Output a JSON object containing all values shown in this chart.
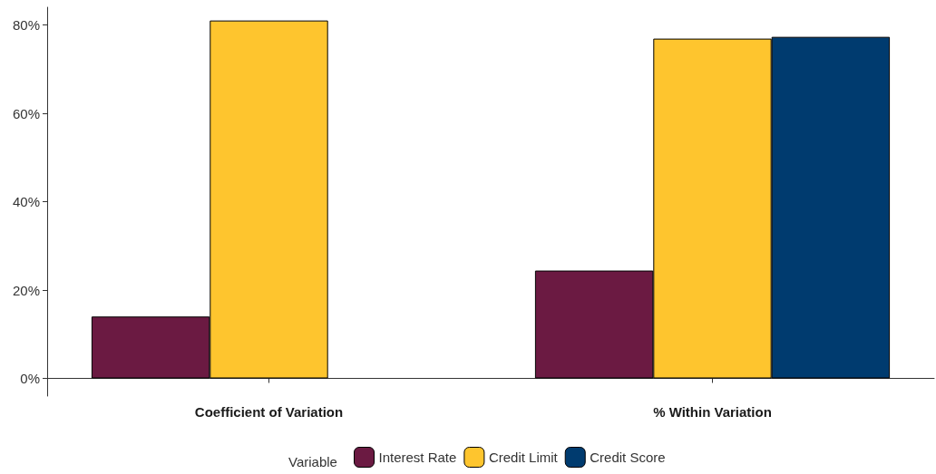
{
  "chart_data": {
    "type": "bar",
    "categories": [
      "Coefficient of Variation",
      "% Within Variation"
    ],
    "series": [
      {
        "name": "Interest Rate",
        "color": "#6b1a42",
        "values": [
          14.0,
          24.4
        ]
      },
      {
        "name": "Credit Limit",
        "color": "#fec52e",
        "values": [
          81.0,
          76.9
        ]
      },
      {
        "name": "Credit Score",
        "color": "#003b6f",
        "values": [
          null,
          77.3
        ]
      }
    ],
    "legend_title": "Variable",
    "legend": "bottom",
    "grid": false,
    "ylim": [
      -4,
      84
    ],
    "yticks": [
      {
        "value": 0,
        "label": "0%"
      },
      {
        "value": 20,
        "label": "20%"
      },
      {
        "value": 40,
        "label": "40%"
      },
      {
        "value": 60,
        "label": "60%"
      },
      {
        "value": 80,
        "label": "80%"
      }
    ]
  }
}
